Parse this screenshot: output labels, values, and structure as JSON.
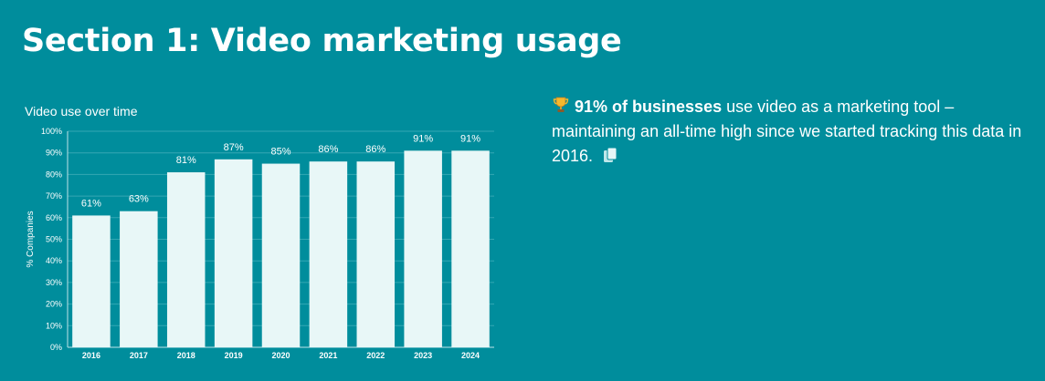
{
  "page": {
    "title": "Section 1: Video marketing usage"
  },
  "stat": {
    "icon": "trophy-icon",
    "highlight": "91% of businesses",
    "text": "use video as a marketing tool – maintaining an all-time high since we started tracking this data in 2016.",
    "copy_icon": "copy-icon"
  },
  "colors": {
    "background": "#008d9c",
    "bar": "#e8f7f7",
    "text": "#ffffff"
  },
  "chart_data": {
    "type": "bar",
    "title": "Video use over time",
    "ylabel": "% Companies",
    "xlabel": "",
    "categories": [
      "2016",
      "2017",
      "2018",
      "2019",
      "2020",
      "2021",
      "2022",
      "2023",
      "2024"
    ],
    "values": [
      61,
      63,
      81,
      87,
      85,
      86,
      86,
      91,
      91
    ],
    "data_labels": [
      "61%",
      "63%",
      "81%",
      "87%",
      "85%",
      "86%",
      "86%",
      "91%",
      "91%"
    ],
    "ylim": [
      0,
      100
    ],
    "yticks": [
      "0%",
      "10%",
      "20%",
      "30%",
      "40%",
      "50%",
      "60%",
      "70%",
      "80%",
      "90%",
      "100%"
    ],
    "grid": true,
    "legend": "none"
  }
}
